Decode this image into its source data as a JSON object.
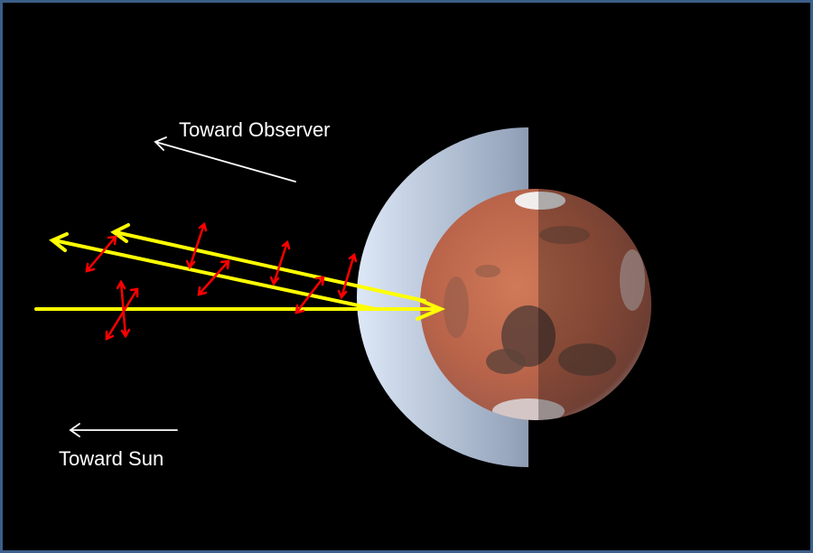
{
  "labels": {
    "toward_observer": "Toward Observer",
    "toward_sun": "Toward Sun"
  },
  "colors": {
    "background": "#000000",
    "frame": "#3c5f8a",
    "light_rays": "#ffff00",
    "polarization_arrows": "#ff0000",
    "direction_arrows": "#ffffff",
    "halo": "#c8d8ee"
  },
  "icons": {
    "planet": "mars-planet-icon",
    "halo": "scattering-halo-icon"
  }
}
